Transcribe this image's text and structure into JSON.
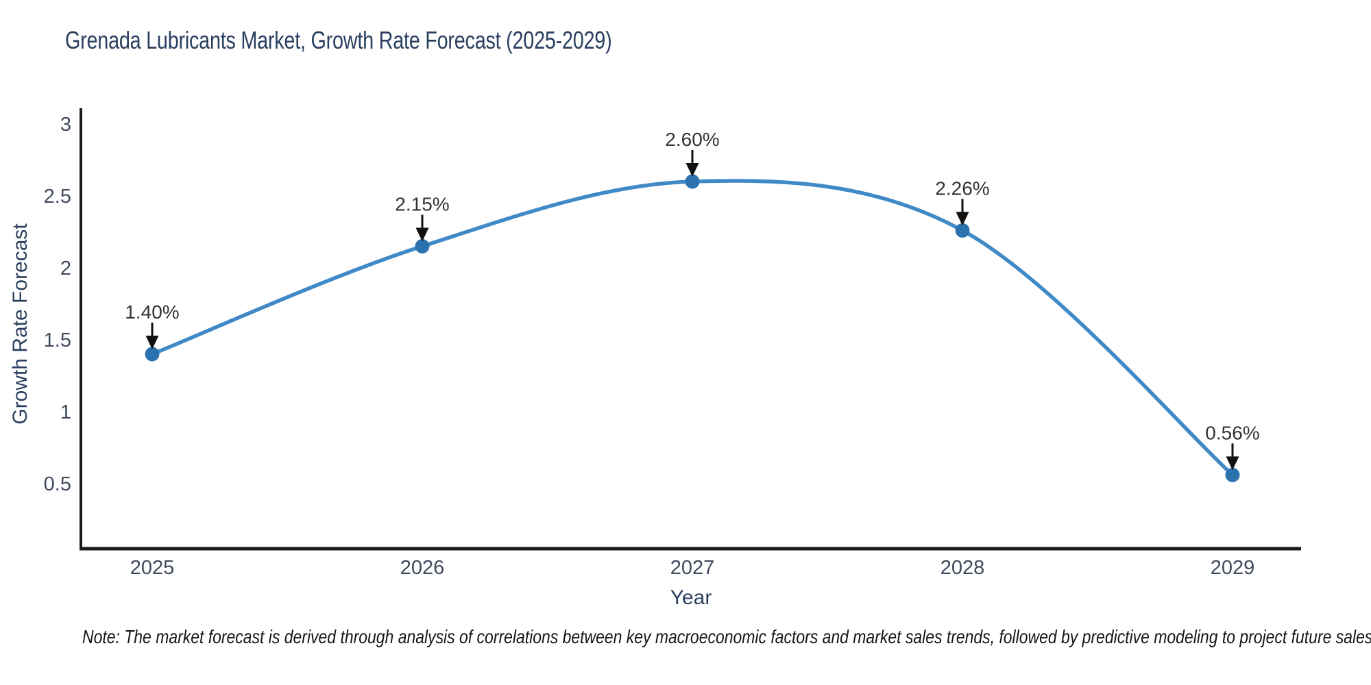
{
  "title": "Grenada Lubricants Market, Growth Rate Forecast (2025-2029)",
  "note": "Note: The market forecast is derived through analysis of correlations between key macroeconomic factors and market sales trends, followed by predictive modeling to project future sales",
  "chart_data": {
    "type": "line",
    "title": "Grenada Lubricants Market, Growth Rate Forecast (2025-2029)",
    "xlabel": "Year",
    "ylabel": "Growth Rate Forecast",
    "categories": [
      "2025",
      "2026",
      "2027",
      "2028",
      "2029"
    ],
    "series": [
      {
        "name": "Growth Rate Forecast",
        "values": [
          1.4,
          2.15,
          2.6,
          2.26,
          0.56
        ]
      }
    ],
    "point_labels": [
      "1.40%",
      "2.15%",
      "2.60%",
      "2.26%",
      "0.56%"
    ],
    "y_ticks": [
      0.5,
      1,
      1.5,
      2,
      2.5,
      3
    ],
    "y_tick_labels": [
      "0.5",
      "1",
      "1.5",
      "2",
      "2.5",
      "3"
    ],
    "ylim": [
      0.05,
      3.1
    ],
    "grid": false,
    "legend": "none",
    "line_shape": "spline",
    "annotations_style": "value label above point with downward black arrow",
    "colors": {
      "line": "#4089c7",
      "marker": "#2b72ae",
      "axis": "#1a1a1a",
      "point_label": "#333333",
      "arrow": "#111111",
      "tick_label": "#3f4a5c",
      "title": "#2a3f5f"
    }
  }
}
